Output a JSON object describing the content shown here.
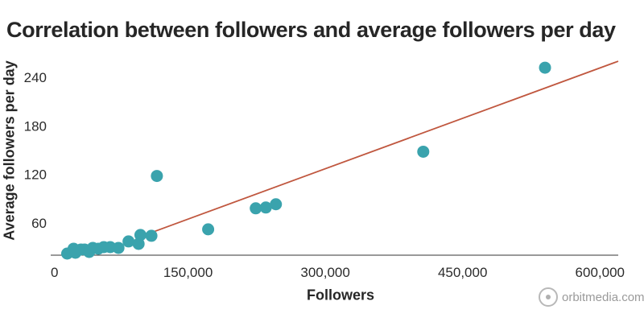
{
  "chart_data": {
    "type": "scatter",
    "title": "Correlation between followers and average followers per day",
    "xlabel": "Followers",
    "ylabel": "Average followers per day",
    "xlim": [
      0,
      620000
    ],
    "ylim": [
      20,
      270
    ],
    "x_ticks": [
      0,
      150000,
      300000,
      450000,
      600000
    ],
    "x_tick_labels": [
      "0",
      "150,000",
      "300,000",
      "450,000",
      "600,000"
    ],
    "y_ticks": [
      60,
      120,
      180,
      240
    ],
    "y_tick_labels": [
      "60",
      "120",
      "180",
      "240"
    ],
    "grid": false,
    "legend": "none",
    "point_color": "#3aa3ad",
    "trendline_color": "#c0573f",
    "points": [
      {
        "x": 18000,
        "y": 22
      },
      {
        "x": 25000,
        "y": 28
      },
      {
        "x": 27000,
        "y": 23
      },
      {
        "x": 33000,
        "y": 27
      },
      {
        "x": 37000,
        "y": 27
      },
      {
        "x": 42000,
        "y": 24
      },
      {
        "x": 46000,
        "y": 29
      },
      {
        "x": 52000,
        "y": 28
      },
      {
        "x": 58000,
        "y": 30
      },
      {
        "x": 65000,
        "y": 30
      },
      {
        "x": 74000,
        "y": 29
      },
      {
        "x": 85000,
        "y": 37
      },
      {
        "x": 96000,
        "y": 34
      },
      {
        "x": 98000,
        "y": 45
      },
      {
        "x": 110000,
        "y": 44
      },
      {
        "x": 116000,
        "y": 118
      },
      {
        "x": 172000,
        "y": 52
      },
      {
        "x": 224000,
        "y": 78
      },
      {
        "x": 235000,
        "y": 79
      },
      {
        "x": 246000,
        "y": 83
      },
      {
        "x": 407000,
        "y": 148
      },
      {
        "x": 540000,
        "y": 252
      }
    ],
    "trendline": {
      "x": [
        98000,
        620000
      ],
      "y": [
        43,
        260
      ]
    }
  },
  "watermark": {
    "text": "orbitmedia.com"
  }
}
